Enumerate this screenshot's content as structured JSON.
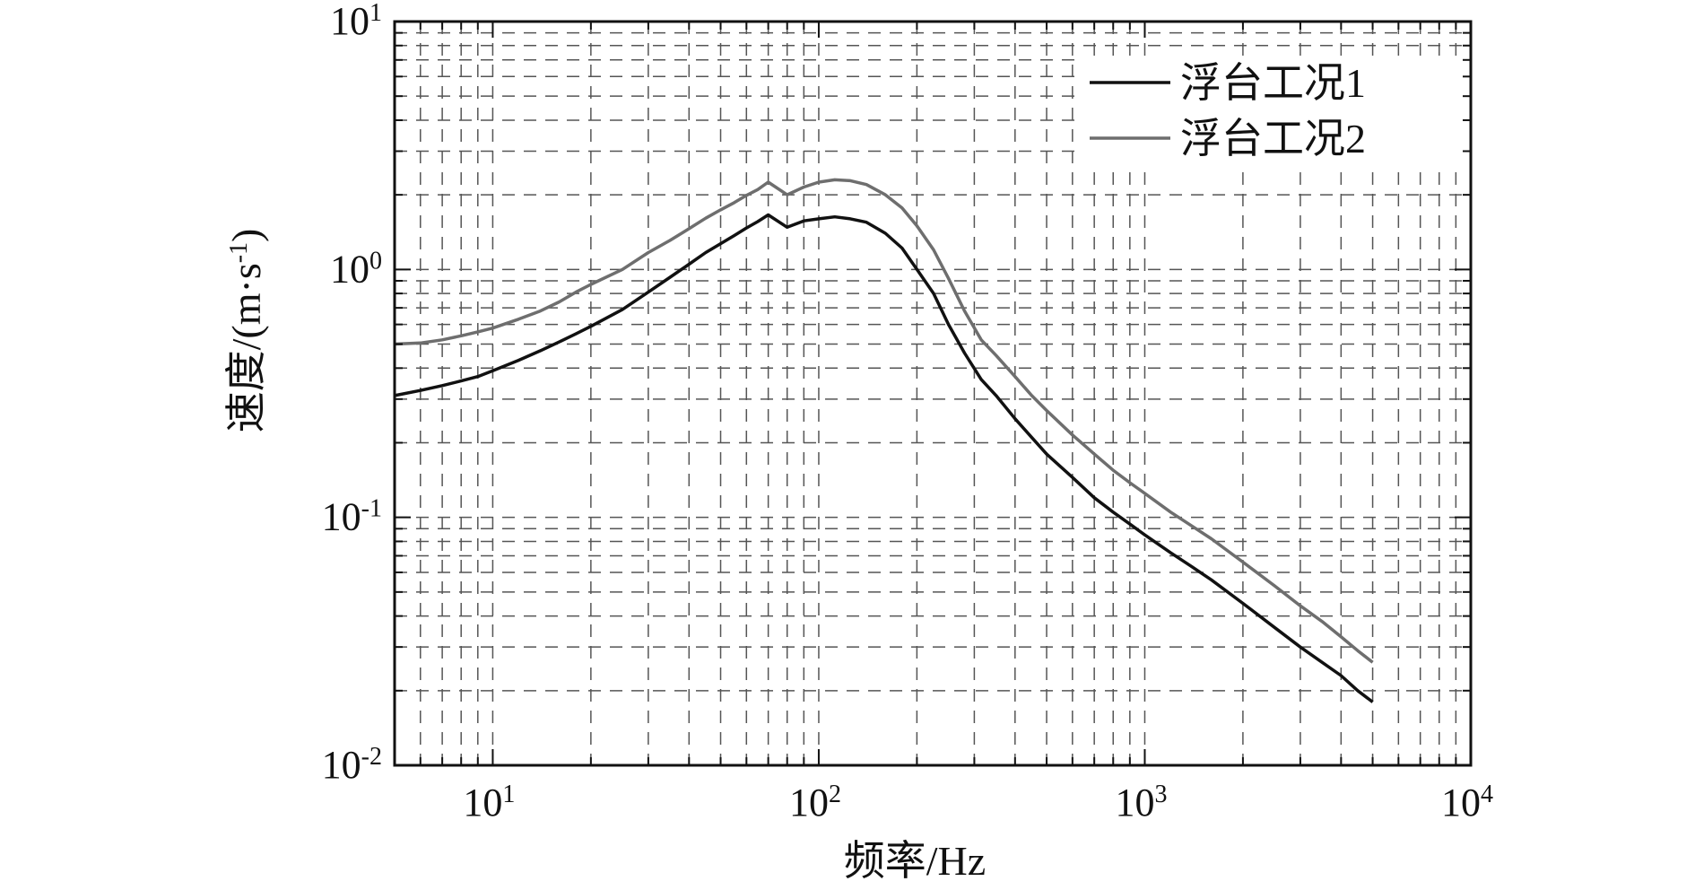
{
  "chart_data": {
    "type": "line",
    "title": "",
    "xlabel": "频率/Hz",
    "ylabel": "速度/(m·s⁻¹)",
    "xscale": "log",
    "yscale": "log",
    "xlim": [
      5,
      10000
    ],
    "ylim": [
      0.01,
      10
    ],
    "grid": true,
    "legend_position": "top-right",
    "x_ticks": [
      {
        "base": "10",
        "exp": "1",
        "value": 10
      },
      {
        "base": "10",
        "exp": "2",
        "value": 100
      },
      {
        "base": "10",
        "exp": "3",
        "value": 1000
      },
      {
        "base": "10",
        "exp": "4",
        "value": 10000
      }
    ],
    "y_ticks": [
      {
        "base": "10",
        "exp": "-2",
        "value": 0.01
      },
      {
        "base": "10",
        "exp": "-1",
        "value": 0.1
      },
      {
        "base": "10",
        "exp": "0",
        "value": 1
      },
      {
        "base": "10",
        "exp": "1",
        "value": 10
      }
    ],
    "series": [
      {
        "name": "浮台工况1",
        "color": "#111111",
        "x": [
          5,
          6,
          7,
          8,
          9,
          10,
          12,
          14,
          16,
          18,
          20,
          25,
          30,
          35,
          40,
          45,
          50,
          55,
          60,
          65,
          70,
          80,
          90,
          100,
          112,
          125,
          140,
          160,
          180,
          200,
          225,
          250,
          280,
          315,
          350,
          400,
          450,
          500,
          600,
          700,
          800,
          900,
          1000,
          1200,
          1400,
          1600,
          2000,
          2500,
          3000,
          3500,
          4000,
          4500,
          5000
        ],
        "y": [
          0.31,
          0.325,
          0.34,
          0.355,
          0.37,
          0.39,
          0.43,
          0.47,
          0.51,
          0.55,
          0.59,
          0.69,
          0.81,
          0.93,
          1.05,
          1.17,
          1.27,
          1.37,
          1.47,
          1.56,
          1.66,
          1.48,
          1.57,
          1.6,
          1.63,
          1.6,
          1.55,
          1.4,
          1.22,
          1.0,
          0.8,
          0.6,
          0.46,
          0.36,
          0.31,
          0.25,
          0.21,
          0.18,
          0.145,
          0.12,
          0.105,
          0.094,
          0.085,
          0.072,
          0.063,
          0.056,
          0.045,
          0.036,
          0.03,
          0.026,
          0.023,
          0.02,
          0.018
        ]
      },
      {
        "name": "浮台工况2",
        "color": "#6e6e6e",
        "x": [
          5,
          6,
          7,
          8,
          9,
          10,
          12,
          14,
          16,
          18,
          20,
          25,
          30,
          35,
          40,
          45,
          50,
          55,
          60,
          65,
          70,
          80,
          90,
          100,
          112,
          125,
          140,
          160,
          180,
          200,
          225,
          250,
          280,
          315,
          350,
          400,
          450,
          500,
          600,
          700,
          800,
          900,
          1000,
          1200,
          1400,
          1600,
          2000,
          2500,
          3000,
          3500,
          4000,
          4500,
          5000
        ],
        "y": [
          0.5,
          0.505,
          0.52,
          0.54,
          0.56,
          0.58,
          0.63,
          0.68,
          0.74,
          0.81,
          0.87,
          1.0,
          1.17,
          1.31,
          1.46,
          1.61,
          1.74,
          1.86,
          1.99,
          2.1,
          2.25,
          2.0,
          2.15,
          2.25,
          2.3,
          2.28,
          2.2,
          2.0,
          1.77,
          1.5,
          1.2,
          0.92,
          0.68,
          0.52,
          0.45,
          0.37,
          0.31,
          0.27,
          0.215,
          0.18,
          0.155,
          0.138,
          0.125,
          0.105,
          0.092,
          0.082,
          0.066,
          0.053,
          0.044,
          0.038,
          0.033,
          0.029,
          0.026
        ]
      }
    ]
  }
}
